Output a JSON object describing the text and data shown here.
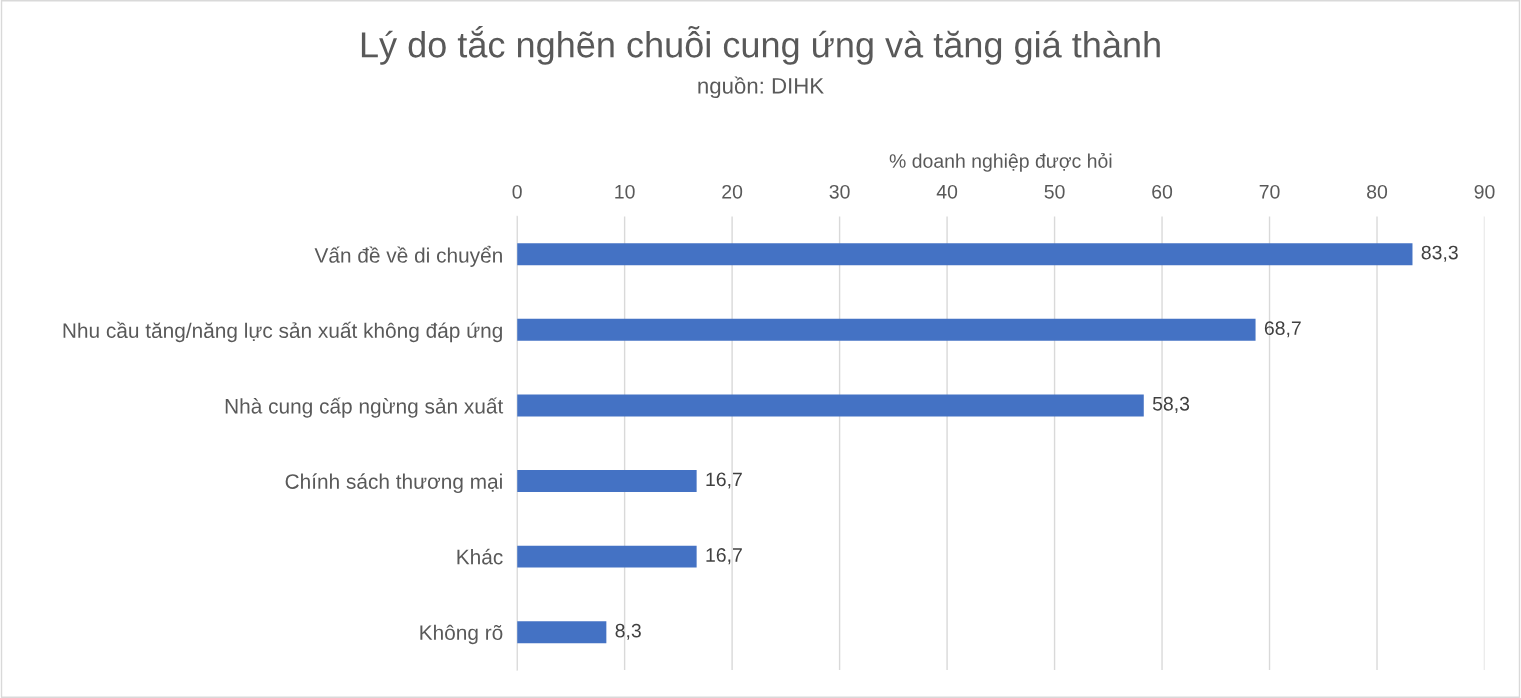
{
  "chart_data": {
    "type": "bar",
    "orientation": "horizontal",
    "title": "Lý do tắc nghẽn chuỗi cung ứng và tăng giá thành",
    "subtitle": "nguồn: DIHK",
    "xlabel": "% doanh nghiệp được hỏi",
    "categories": [
      "Vấn đề về di chuyển",
      "Nhu cầu tăng/năng lực sản xuất không đáp ứng",
      "Nhà cung cấp ngừng sản xuất",
      "Chính sách thương mại",
      "Khác",
      "Không rõ"
    ],
    "values": [
      83.3,
      68.7,
      58.3,
      16.7,
      16.7,
      8.3
    ],
    "value_labels": [
      "83,3",
      "68,7",
      "58,3",
      "16,7",
      "16,7",
      "8,3"
    ],
    "color": "#4472c4",
    "xlim": [
      0,
      90
    ],
    "xticks": [
      0,
      10,
      20,
      30,
      40,
      50,
      60,
      70,
      80,
      90
    ],
    "grid": "x",
    "legend": false
  }
}
